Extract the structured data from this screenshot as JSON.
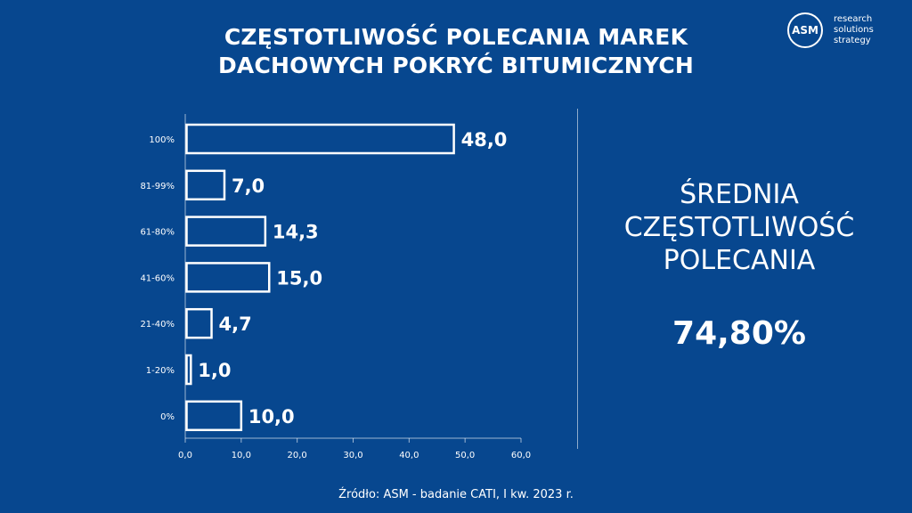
{
  "header": {
    "title_line1": "CZĘSTOTLIWOŚĆ POLECANIA MAREK",
    "title_line2": "DACHOWYCH POKRYĆ BITUMICZNYCH"
  },
  "logo": {
    "mark": "ASM",
    "line1": "research",
    "line2": "solutions",
    "line3": "strategy"
  },
  "chart_data": {
    "type": "bar",
    "orientation": "horizontal",
    "categories": [
      "100%",
      "81-99%",
      "61-80%",
      "41-60%",
      "21-40%",
      "1-20%",
      "0%"
    ],
    "values": [
      48.0,
      7.0,
      14.3,
      15.0,
      4.7,
      1.0,
      10.0
    ],
    "value_labels": [
      "48,0",
      "7,0",
      "14,3",
      "15,0",
      "4,7",
      "1,0",
      "10,0"
    ],
    "x_ticks": [
      "0,0",
      "10,0",
      "20,0",
      "30,0",
      "40,0",
      "50,0",
      "60,0"
    ],
    "xlim": [
      0,
      60
    ],
    "grid": false,
    "colors": {
      "bar_fill": "#07478f",
      "bar_stroke": "#ffffff",
      "background": "#07478f"
    }
  },
  "summary": {
    "label_line1": "ŚREDNIA",
    "label_line2": "CZĘSTOTLIWOŚĆ",
    "label_line3": "POLECANIA",
    "value": "74,80%"
  },
  "footer": {
    "source": "Źródło: ASM - badanie CATI, I kw. 2023 r."
  }
}
